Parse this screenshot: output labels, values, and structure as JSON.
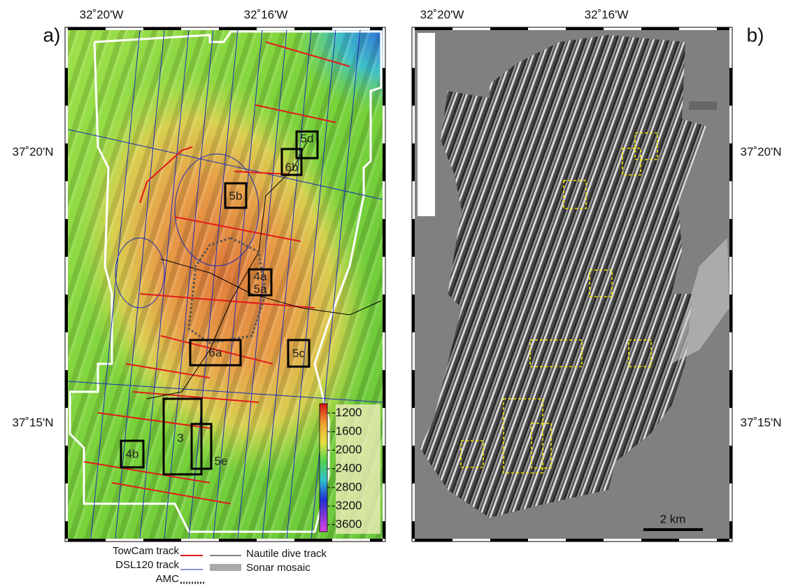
{
  "top_labels": [
    "32˚20'W",
    "32˚16'W"
  ],
  "side_labels": [
    "37˚20'N",
    "37˚15'N"
  ],
  "panel_a": {
    "label": "a)",
    "boxes": [
      "5d",
      "6b",
      "5b",
      "4a",
      "5a",
      "6a",
      "5c",
      "3",
      "5e",
      "4b"
    ],
    "colorbar": {
      "lim": [
        -1000,
        -3750
      ],
      "ticks": [
        -1200,
        -1600,
        -2000,
        -2400,
        -2800,
        -3200,
        -3600
      ]
    }
  },
  "panel_b": {
    "label": "b)",
    "scale_bar": "2 km"
  },
  "legend": [
    "TowCam track",
    "DSL120 track",
    "AMC",
    "Nautile dive track",
    "Sonar mosaic"
  ]
}
